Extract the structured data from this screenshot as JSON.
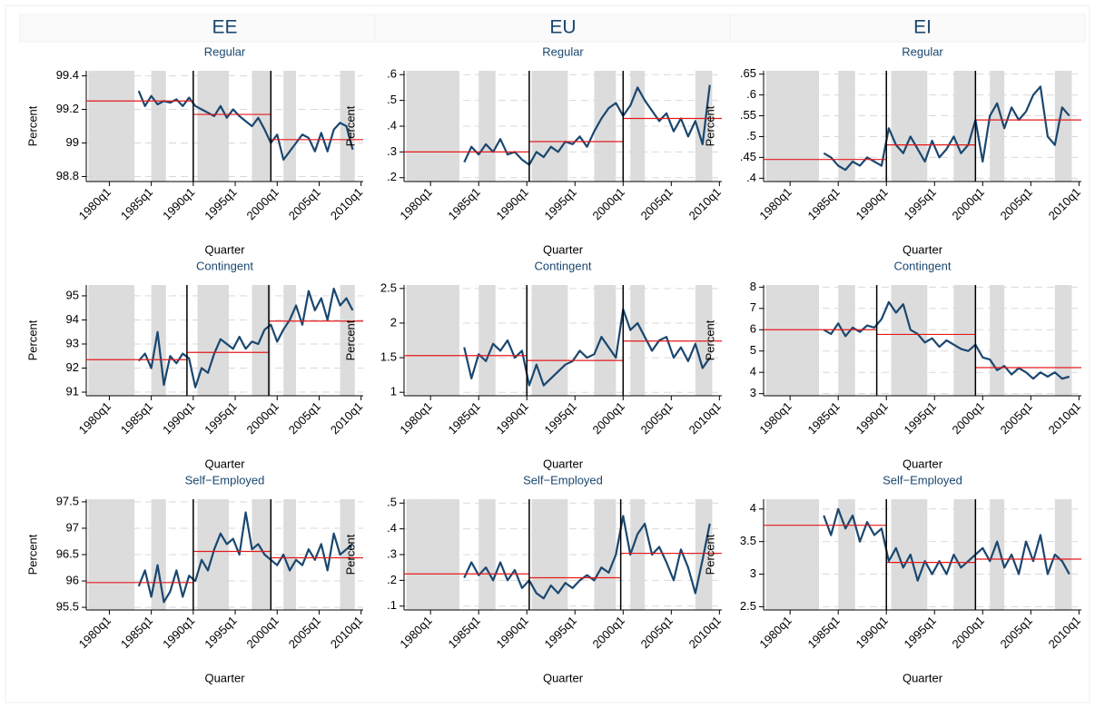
{
  "columns": [
    "EE",
    "EU",
    "EI"
  ],
  "shaded": [
    [
      70,
      92
    ],
    [
      100,
      107
    ],
    [
      122,
      137
    ],
    [
      148,
      157
    ],
    [
      163,
      169
    ],
    [
      190,
      197
    ]
  ],
  "chart_data": [
    {
      "type": "line",
      "title": "Regular",
      "x_label": "Quarter",
      "y_label": "Percent",
      "color": "#1a476f",
      "mean_color": "#e41a1c",
      "break_color": "#000000",
      "x": [
        94,
        97,
        100,
        103,
        106,
        109,
        112,
        115,
        118,
        121,
        124,
        127,
        130,
        133,
        136,
        139,
        142,
        145,
        148,
        151,
        154,
        157,
        160,
        163,
        166,
        169,
        172,
        175,
        178,
        181,
        184,
        187,
        190,
        193,
        196
      ],
      "values": [
        99.31,
        99.22,
        99.28,
        99.23,
        99.25,
        99.24,
        99.26,
        99.22,
        99.27,
        99.22,
        99.2,
        99.18,
        99.16,
        99.22,
        99.15,
        99.2,
        99.16,
        99.13,
        99.1,
        99.15,
        99.08,
        99.0,
        99.05,
        98.9,
        98.95,
        99.0,
        99.05,
        99.03,
        98.95,
        99.06,
        98.95,
        99.08,
        99.12,
        99.1,
        98.96
      ],
      "breaks": [
        120,
        157
      ],
      "means": [
        99.25,
        99.17,
        99.02
      ],
      "xlim": [
        69,
        201
      ],
      "xticks": [
        {
          "value": 80,
          "label": "1980q1"
        },
        {
          "value": 100,
          "label": "1985q1"
        },
        {
          "value": 120,
          "label": "1990q1"
        },
        {
          "value": 140,
          "label": "1995q1"
        },
        {
          "value": 160,
          "label": "2000q1"
        },
        {
          "value": 180,
          "label": "2005q1"
        },
        {
          "value": 200,
          "label": "2010q1"
        }
      ],
      "ylim": [
        98.77,
        99.43
      ],
      "yticks": [
        98.8,
        99,
        99.2,
        99.4
      ],
      "grid": true
    },
    {
      "type": "line",
      "title": "Regular",
      "x_label": "Quarter",
      "y_label": "Percent",
      "color": "#1a476f",
      "mean_color": "#e41a1c",
      "break_color": "#000000",
      "x": [
        94,
        97,
        100,
        103,
        106,
        109,
        112,
        115,
        118,
        121,
        124,
        127,
        130,
        133,
        136,
        139,
        142,
        145,
        148,
        151,
        154,
        157,
        160,
        163,
        166,
        169,
        172,
        175,
        178,
        181,
        184,
        187,
        190,
        193,
        196
      ],
      "values": [
        0.26,
        0.32,
        0.29,
        0.33,
        0.3,
        0.35,
        0.29,
        0.3,
        0.27,
        0.25,
        0.3,
        0.28,
        0.32,
        0.3,
        0.34,
        0.33,
        0.36,
        0.32,
        0.38,
        0.43,
        0.47,
        0.49,
        0.44,
        0.48,
        0.55,
        0.5,
        0.46,
        0.42,
        0.45,
        0.38,
        0.43,
        0.36,
        0.42,
        0.33,
        0.56
      ],
      "breaks": [
        121,
        160
      ],
      "means": [
        0.3,
        0.34,
        0.43
      ],
      "xlim": [
        69,
        201
      ],
      "xticks": [
        {
          "value": 80,
          "label": "1980q1"
        },
        {
          "value": 100,
          "label": "1985q1"
        },
        {
          "value": 120,
          "label": "1990q1"
        },
        {
          "value": 140,
          "label": "1995q1"
        },
        {
          "value": 160,
          "label": "2000q1"
        },
        {
          "value": 180,
          "label": "2005q1"
        },
        {
          "value": 200,
          "label": "2010q1"
        }
      ],
      "ylim": [
        0.185,
        0.615
      ],
      "yticks": [
        {
          "value": 0.2,
          "label": ".2"
        },
        {
          "value": 0.3,
          "label": ".3"
        },
        {
          "value": 0.4,
          "label": ".4"
        },
        {
          "value": 0.5,
          "label": ".5"
        },
        {
          "value": 0.6,
          "label": ".6"
        }
      ],
      "grid": true
    },
    {
      "type": "line",
      "title": "Regular",
      "x_label": "Quarter",
      "y_label": "Percent",
      "color": "#1a476f",
      "mean_color": "#e41a1c",
      "break_color": "#000000",
      "x": [
        94,
        97,
        100,
        103,
        106,
        109,
        112,
        115,
        118,
        121,
        124,
        127,
        130,
        133,
        136,
        139,
        142,
        145,
        148,
        151,
        154,
        157,
        160,
        163,
        166,
        169,
        172,
        175,
        178,
        181,
        184,
        187,
        190,
        193,
        196
      ],
      "values": [
        0.46,
        0.45,
        0.43,
        0.42,
        0.44,
        0.43,
        0.45,
        0.44,
        0.43,
        0.52,
        0.48,
        0.46,
        0.5,
        0.47,
        0.44,
        0.49,
        0.45,
        0.47,
        0.5,
        0.46,
        0.48,
        0.54,
        0.44,
        0.55,
        0.58,
        0.52,
        0.57,
        0.54,
        0.56,
        0.6,
        0.62,
        0.5,
        0.48,
        0.57,
        0.55
      ],
      "breaks": [
        120,
        157
      ],
      "means": [
        0.445,
        0.48,
        0.54
      ],
      "xlim": [
        69,
        201
      ],
      "xticks": [
        {
          "value": 80,
          "label": "1980q1"
        },
        {
          "value": 100,
          "label": "1985q1"
        },
        {
          "value": 120,
          "label": "1990q1"
        },
        {
          "value": 140,
          "label": "1995q1"
        },
        {
          "value": 160,
          "label": "2000q1"
        },
        {
          "value": 180,
          "label": "2005q1"
        },
        {
          "value": 200,
          "label": "2010q1"
        }
      ],
      "ylim": [
        0.392,
        0.658
      ],
      "yticks": [
        {
          "value": 0.4,
          "label": ".4"
        },
        {
          "value": 0.45,
          "label": ".45"
        },
        {
          "value": 0.5,
          "label": ".5"
        },
        {
          "value": 0.55,
          "label": ".55"
        },
        {
          "value": 0.6,
          "label": ".6"
        },
        {
          "value": 0.65,
          "label": ".65"
        }
      ],
      "grid": true
    },
    {
      "type": "line",
      "title": "Contingent",
      "x_label": "Quarter",
      "y_label": "Percent",
      "color": "#1a476f",
      "mean_color": "#e41a1c",
      "break_color": "#000000",
      "x": [
        94,
        97,
        100,
        103,
        106,
        109,
        112,
        115,
        118,
        121,
        124,
        127,
        130,
        133,
        136,
        139,
        142,
        145,
        148,
        151,
        154,
        157,
        160,
        163,
        166,
        169,
        172,
        175,
        178,
        181,
        184,
        187,
        190,
        193,
        196
      ],
      "values": [
        92.3,
        92.6,
        92.0,
        93.5,
        91.3,
        92.5,
        92.2,
        92.6,
        92.4,
        91.2,
        92.0,
        91.8,
        92.6,
        93.2,
        93.0,
        92.8,
        93.3,
        92.8,
        93.1,
        93.0,
        93.6,
        93.8,
        93.1,
        93.6,
        94.0,
        94.6,
        93.8,
        95.2,
        94.4,
        94.9,
        94.0,
        95.3,
        94.6,
        94.9,
        94.4
      ],
      "breaks": [
        117,
        156
      ],
      "means": [
        92.35,
        92.65,
        93.95
      ],
      "xlim": [
        69,
        201
      ],
      "xticks": [
        {
          "value": 80,
          "label": "1980q1"
        },
        {
          "value": 100,
          "label": "1985q1"
        },
        {
          "value": 120,
          "label": "1990q1"
        },
        {
          "value": 140,
          "label": "1995q1"
        },
        {
          "value": 160,
          "label": "2000q1"
        },
        {
          "value": 180,
          "label": "2005q1"
        },
        {
          "value": 200,
          "label": "2010q1"
        }
      ],
      "ylim": [
        90.85,
        95.45
      ],
      "yticks": [
        91,
        92,
        93,
        94,
        95
      ],
      "grid": true
    },
    {
      "type": "line",
      "title": "Contingent",
      "x_label": "Quarter",
      "y_label": "Percent",
      "color": "#1a476f",
      "mean_color": "#e41a1c",
      "break_color": "#000000",
      "x": [
        94,
        97,
        100,
        103,
        106,
        109,
        112,
        115,
        118,
        121,
        124,
        127,
        130,
        133,
        136,
        139,
        142,
        145,
        148,
        151,
        154,
        157,
        160,
        163,
        166,
        169,
        172,
        175,
        178,
        181,
        184,
        187,
        190,
        193,
        196
      ],
      "values": [
        1.65,
        1.2,
        1.55,
        1.45,
        1.7,
        1.6,
        1.75,
        1.5,
        1.6,
        1.1,
        1.4,
        1.1,
        1.2,
        1.3,
        1.4,
        1.45,
        1.6,
        1.5,
        1.55,
        1.8,
        1.65,
        1.5,
        2.2,
        1.9,
        2.0,
        1.8,
        1.6,
        1.75,
        1.8,
        1.5,
        1.65,
        1.45,
        1.7,
        1.35,
        1.5
      ],
      "breaks": [
        120,
        160
      ],
      "means": [
        1.53,
        1.46,
        1.74
      ],
      "xlim": [
        69,
        201
      ],
      "xticks": [
        {
          "value": 80,
          "label": "1980q1"
        },
        {
          "value": 100,
          "label": "1985q1"
        },
        {
          "value": 120,
          "label": "1990q1"
        },
        {
          "value": 140,
          "label": "1995q1"
        },
        {
          "value": 160,
          "label": "2000q1"
        },
        {
          "value": 180,
          "label": "2005q1"
        },
        {
          "value": 200,
          "label": "2010q1"
        }
      ],
      "ylim": [
        0.95,
        2.55
      ],
      "yticks": [
        1,
        1.5,
        2,
        2.5
      ],
      "grid": true
    },
    {
      "type": "line",
      "title": "Contingent",
      "x_label": "Quarter",
      "y_label": "Percent",
      "color": "#1a476f",
      "mean_color": "#e41a1c",
      "break_color": "#000000",
      "x": [
        94,
        97,
        100,
        103,
        106,
        109,
        112,
        115,
        118,
        121,
        124,
        127,
        130,
        133,
        136,
        139,
        142,
        145,
        148,
        151,
        154,
        157,
        160,
        163,
        166,
        169,
        172,
        175,
        178,
        181,
        184,
        187,
        190,
        193,
        196
      ],
      "values": [
        6.0,
        5.8,
        6.3,
        5.7,
        6.1,
        5.9,
        6.2,
        6.1,
        6.5,
        7.3,
        6.8,
        7.2,
        6.0,
        5.8,
        5.4,
        5.6,
        5.2,
        5.5,
        5.3,
        5.1,
        5.0,
        5.3,
        4.7,
        4.6,
        4.1,
        4.3,
        3.9,
        4.2,
        4.0,
        3.7,
        4.0,
        3.8,
        4.0,
        3.7,
        3.8
      ],
      "breaks": [
        116,
        157
      ],
      "means": [
        6.0,
        5.78,
        4.22
      ],
      "xlim": [
        69,
        201
      ],
      "xticks": [
        {
          "value": 80,
          "label": "1980q1"
        },
        {
          "value": 100,
          "label": "1985q1"
        },
        {
          "value": 120,
          "label": "1990q1"
        },
        {
          "value": 140,
          "label": "1995q1"
        },
        {
          "value": 160,
          "label": "2000q1"
        },
        {
          "value": 180,
          "label": "2005q1"
        },
        {
          "value": 200,
          "label": "2010q1"
        }
      ],
      "ylim": [
        2.9,
        8.1
      ],
      "yticks": [
        3,
        4,
        5,
        6,
        7,
        8
      ],
      "grid": true
    },
    {
      "type": "line",
      "title": "Self−Employed",
      "x_label": "Quarter",
      "y_label": "Percent",
      "color": "#1a476f",
      "mean_color": "#e41a1c",
      "break_color": "#000000",
      "x": [
        94,
        97,
        100,
        103,
        106,
        109,
        112,
        115,
        118,
        121,
        124,
        127,
        130,
        133,
        136,
        139,
        142,
        145,
        148,
        151,
        154,
        157,
        160,
        163,
        166,
        169,
        172,
        175,
        178,
        181,
        184,
        187,
        190,
        193,
        196
      ],
      "values": [
        95.9,
        96.2,
        95.7,
        96.3,
        95.6,
        95.8,
        96.2,
        95.7,
        96.1,
        96.0,
        96.4,
        96.2,
        96.6,
        96.9,
        96.7,
        96.8,
        96.5,
        97.3,
        96.6,
        96.7,
        96.5,
        96.4,
        96.3,
        96.5,
        96.2,
        96.4,
        96.3,
        96.6,
        96.4,
        96.7,
        96.2,
        96.9,
        96.5,
        96.6,
        96.7
      ],
      "breaks": [
        120,
        157
      ],
      "means": [
        95.97,
        96.56,
        96.44
      ],
      "xlim": [
        69,
        201
      ],
      "xticks": [
        {
          "value": 80,
          "label": "1980q1"
        },
        {
          "value": 100,
          "label": "1985q1"
        },
        {
          "value": 120,
          "label": "1990q1"
        },
        {
          "value": 140,
          "label": "1995q1"
        },
        {
          "value": 160,
          "label": "2000q1"
        },
        {
          "value": 180,
          "label": "2005q1"
        },
        {
          "value": 200,
          "label": "2010q1"
        }
      ],
      "ylim": [
        95.45,
        97.55
      ],
      "yticks": [
        95.5,
        96,
        96.5,
        97,
        97.5
      ],
      "grid": true
    },
    {
      "type": "line",
      "title": "Self−Employed",
      "x_label": "Quarter",
      "y_label": "Percent",
      "color": "#1a476f",
      "mean_color": "#e41a1c",
      "break_color": "#000000",
      "x": [
        94,
        97,
        100,
        103,
        106,
        109,
        112,
        115,
        118,
        121,
        124,
        127,
        130,
        133,
        136,
        139,
        142,
        145,
        148,
        151,
        154,
        157,
        160,
        163,
        166,
        169,
        172,
        175,
        178,
        181,
        184,
        187,
        190,
        193,
        196
      ],
      "values": [
        0.21,
        0.27,
        0.22,
        0.25,
        0.2,
        0.27,
        0.2,
        0.24,
        0.17,
        0.2,
        0.15,
        0.13,
        0.18,
        0.15,
        0.19,
        0.17,
        0.2,
        0.22,
        0.2,
        0.25,
        0.23,
        0.3,
        0.45,
        0.3,
        0.38,
        0.42,
        0.3,
        0.33,
        0.27,
        0.2,
        0.32,
        0.25,
        0.15,
        0.28,
        0.42
      ],
      "breaks": [
        121,
        159
      ],
      "means": [
        0.225,
        0.21,
        0.305
      ],
      "xlim": [
        69,
        201
      ],
      "xticks": [
        {
          "value": 80,
          "label": "1980q1"
        },
        {
          "value": 100,
          "label": "1985q1"
        },
        {
          "value": 120,
          "label": "1990q1"
        },
        {
          "value": 140,
          "label": "1995q1"
        },
        {
          "value": 160,
          "label": "2000q1"
        },
        {
          "value": 180,
          "label": "2005q1"
        },
        {
          "value": 200,
          "label": "2010q1"
        }
      ],
      "ylim": [
        0.085,
        0.515
      ],
      "yticks": [
        {
          "value": 0.1,
          "label": ".1"
        },
        {
          "value": 0.2,
          "label": ".2"
        },
        {
          "value": 0.3,
          "label": ".3"
        },
        {
          "value": 0.4,
          "label": ".4"
        },
        {
          "value": 0.5,
          "label": ".5"
        }
      ],
      "grid": true
    },
    {
      "type": "line",
      "title": "Self−Employed",
      "x_label": "Quarter",
      "y_label": "Percent",
      "color": "#1a476f",
      "mean_color": "#e41a1c",
      "break_color": "#000000",
      "x": [
        94,
        97,
        100,
        103,
        106,
        109,
        112,
        115,
        118,
        121,
        124,
        127,
        130,
        133,
        136,
        139,
        142,
        145,
        148,
        151,
        154,
        157,
        160,
        163,
        166,
        169,
        172,
        175,
        178,
        181,
        184,
        187,
        190,
        193,
        196
      ],
      "values": [
        3.9,
        3.6,
        4.0,
        3.7,
        3.9,
        3.5,
        3.8,
        3.6,
        3.7,
        3.2,
        3.4,
        3.1,
        3.3,
        2.9,
        3.2,
        3.0,
        3.2,
        3.0,
        3.3,
        3.1,
        3.2,
        3.3,
        3.4,
        3.2,
        3.5,
        3.1,
        3.3,
        3.0,
        3.5,
        3.2,
        3.6,
        3.0,
        3.3,
        3.2,
        3.0
      ],
      "breaks": [
        120,
        157
      ],
      "means": [
        3.75,
        3.18,
        3.23
      ],
      "xlim": [
        69,
        201
      ],
      "xticks": [
        {
          "value": 80,
          "label": "1980q1"
        },
        {
          "value": 100,
          "label": "1985q1"
        },
        {
          "value": 120,
          "label": "1990q1"
        },
        {
          "value": 140,
          "label": "1995q1"
        },
        {
          "value": 160,
          "label": "2000q1"
        },
        {
          "value": 180,
          "label": "2005q1"
        },
        {
          "value": 200,
          "label": "2010q1"
        }
      ],
      "ylim": [
        2.45,
        4.15
      ],
      "yticks": [
        2.5,
        3,
        3.5,
        4
      ],
      "grid": true
    }
  ]
}
